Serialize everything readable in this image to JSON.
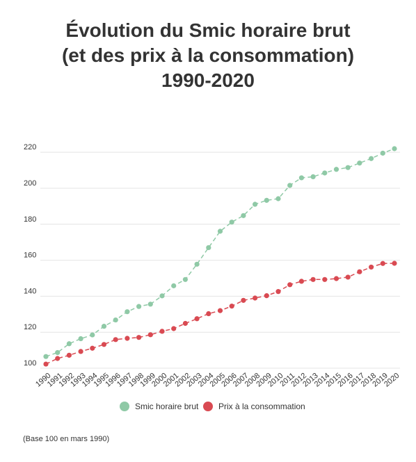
{
  "title_lines": [
    "Évolution du Smic horaire brut",
    "(et des prix à la consommation)",
    "1990-2020"
  ],
  "footnote": "(Base 100 en mars 1990)",
  "colors": {
    "smic": "#8fc9a6",
    "prix": "#d94a52",
    "grid": "#e4e4e4",
    "text": "#333333"
  },
  "chart_data": {
    "type": "line",
    "title": "Évolution du Smic horaire brut (et des prix à la consommation) 1990-2020",
    "xlabel": "",
    "ylabel": "",
    "ylim": [
      100,
      222
    ],
    "yticks": [
      100,
      120,
      140,
      160,
      180,
      200,
      220
    ],
    "grid": true,
    "legend_position": "bottom",
    "x": [
      "1990",
      "1991",
      "1992",
      "1993",
      "1994",
      "1995",
      "1996",
      "1997",
      "1998",
      "1999",
      "2000",
      "2001",
      "2002",
      "2003",
      "2004",
      "2005",
      "2006",
      "2007",
      "2008",
      "2009",
      "2010",
      "2011",
      "2012",
      "2013",
      "2014",
      "2015",
      "2016",
      "2017",
      "2018",
      "2019",
      "2020"
    ],
    "series": [
      {
        "name": "Smic horaire brut",
        "values": [
          106.5,
          108.7,
          113.6,
          116.4,
          118.5,
          123.3,
          126.8,
          131.4,
          134.3,
          135.6,
          140.2,
          145.8,
          149.3,
          157.8,
          167.0,
          176.1,
          181.2,
          184.8,
          191.1,
          193.3,
          194.2,
          201.6,
          205.8,
          206.4,
          208.5,
          210.5,
          211.5,
          214.0,
          216.5,
          219.5,
          222.0
        ]
      },
      {
        "name": "Prix à la consommation",
        "values": [
          102.3,
          105.4,
          107.2,
          109.3,
          111.1,
          113.2,
          115.9,
          116.6,
          117.1,
          118.6,
          120.5,
          122.0,
          124.9,
          127.5,
          130.3,
          132.0,
          134.5,
          137.7,
          139.0,
          140.3,
          142.6,
          146.4,
          148.3,
          149.3,
          149.3,
          149.8,
          150.6,
          153.6,
          156.2,
          158.2,
          158.3
        ]
      }
    ]
  }
}
